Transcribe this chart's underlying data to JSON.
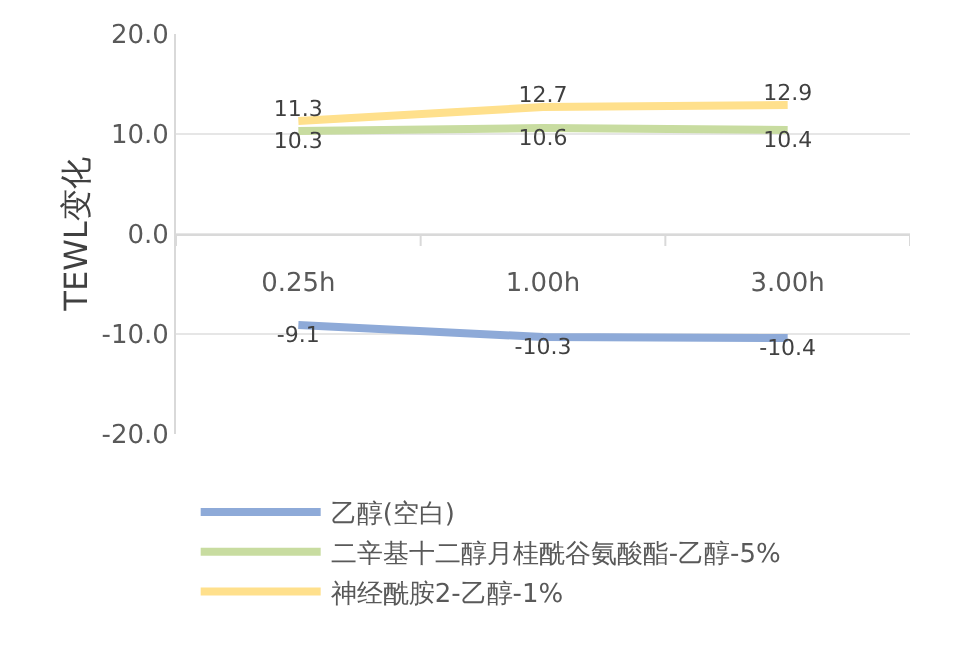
{
  "chart_data": {
    "type": "line",
    "ylabel": "TEWL变化",
    "categories": [
      "0.25h",
      "1.00h",
      "3.00h"
    ],
    "series": [
      {
        "name": "乙醇(空白)",
        "color": "#8eaad8",
        "values": [
          -9.1,
          -10.3,
          -10.4
        ]
      },
      {
        "name": "二辛基十二醇月桂酰谷氨酸酯-乙醇-5%",
        "color": "#c8dca0",
        "values": [
          10.3,
          10.6,
          10.4
        ]
      },
      {
        "name": "神经酰胺2-乙醇-1%",
        "color": "#ffe08c",
        "values": [
          11.3,
          12.7,
          12.9
        ]
      }
    ],
    "ylim": [
      -20,
      20
    ],
    "yticks": [
      {
        "value": 20,
        "label": "20.0"
      },
      {
        "value": 10,
        "label": "10.0"
      },
      {
        "value": 0,
        "label": "0.0"
      },
      {
        "value": -10,
        "label": "-10.0"
      },
      {
        "value": -20,
        "label": "-20.0"
      }
    ],
    "grid": "y",
    "legend": "bottom",
    "data_labels": true,
    "marker": "none",
    "line_style": "solid"
  }
}
